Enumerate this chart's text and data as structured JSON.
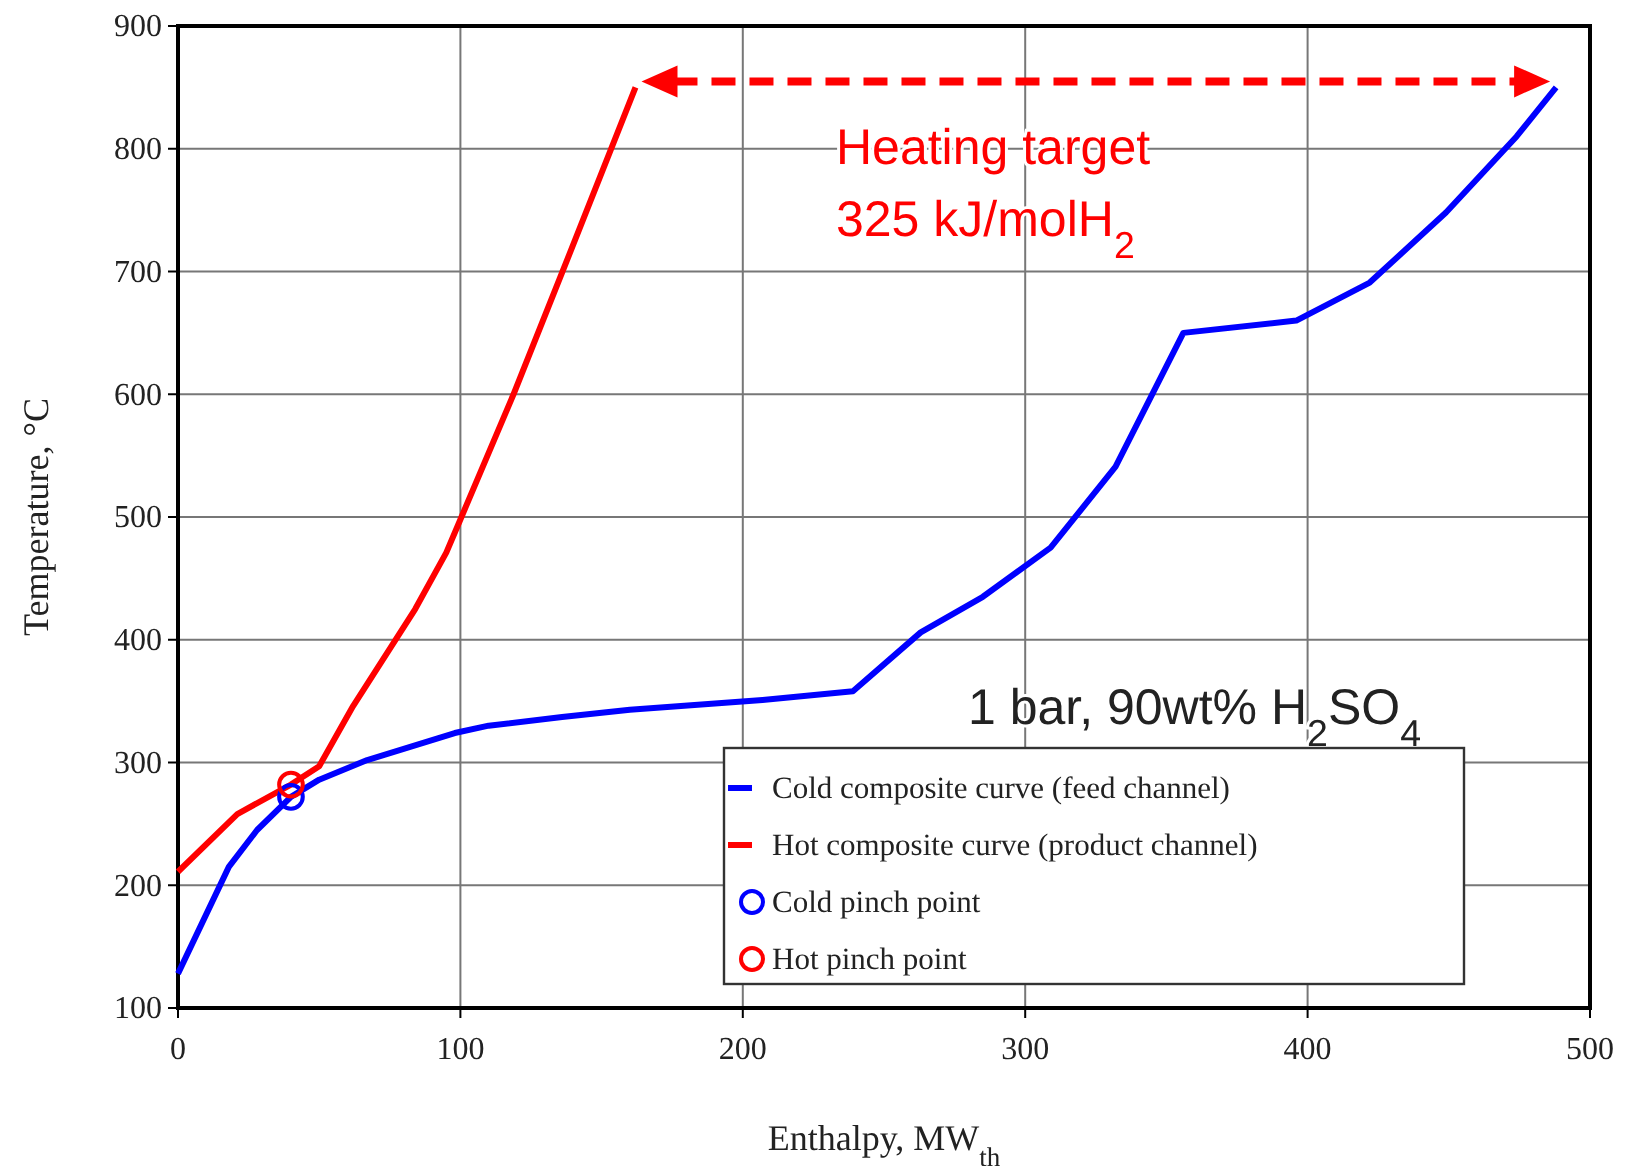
{
  "chart_data": {
    "type": "line",
    "xlabel": "Enthalpy, MW$_{th}$",
    "ylabel": "Temperature, °C",
    "xlim": [
      0,
      500
    ],
    "xticks": [
      0,
      100,
      200,
      300,
      400,
      500
    ],
    "ylim": [
      100,
      900
    ],
    "yticks": [
      100,
      200,
      300,
      400,
      500,
      600,
      700,
      800,
      900
    ],
    "grid": true,
    "legend": "bottom right",
    "line_style": "solid",
    "series": [
      {
        "name": "Cold composite curve (feed channel)",
        "color": "#0000ff",
        "x": [
          0,
          18,
          28,
          40,
          50,
          67,
          98,
          110,
          136,
          160,
          207,
          239,
          263,
          285,
          309,
          332,
          356,
          396,
          422,
          449,
          474,
          488
        ],
        "values": [
          128,
          215,
          245,
          272,
          286,
          302,
          324,
          330,
          337,
          343,
          351,
          358,
          406,
          435,
          475,
          541,
          650,
          660,
          691,
          748,
          810,
          850
        ]
      },
      {
        "name": "Hot composite curve (product channel)",
        "color": "#ff0000",
        "x": [
          0,
          21,
          40,
          50,
          62,
          84,
          95,
          100,
          119,
          136,
          162
        ],
        "values": [
          211,
          258,
          282,
          297,
          346,
          425,
          471,
          498,
          601,
          699,
          850
        ]
      },
      {
        "name": "Cold pinch point",
        "type": "scatter",
        "marker": "circle",
        "color": "#0000ff",
        "x": [
          40
        ],
        "values": [
          272
        ]
      },
      {
        "name": "Hot pinch point",
        "type": "scatter",
        "marker": "circle",
        "color": "#ff0000",
        "x": [
          40
        ],
        "values": [
          282
        ]
      }
    ],
    "annotations": [
      "Heating target",
      "325 kJ/molH$_{2}$",
      "1 bar, 90wt% H$_{2}$SO$_{4}$"
    ]
  }
}
